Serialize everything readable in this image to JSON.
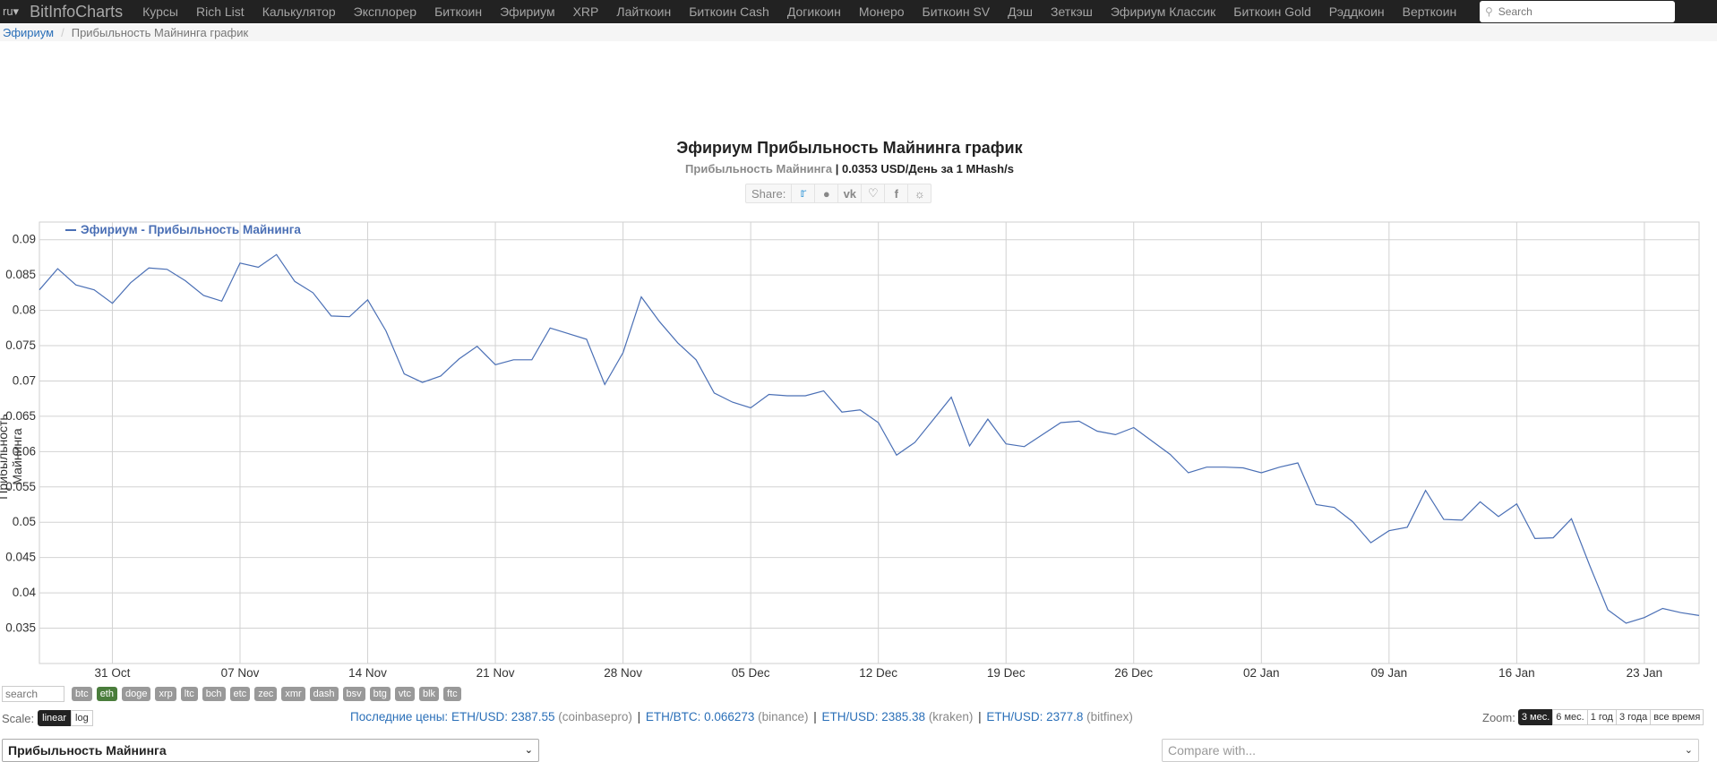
{
  "navbar": {
    "lang": "ru▾",
    "brand": "BitInfoCharts",
    "items": [
      "Курсы",
      "Rich List",
      "Калькулятор",
      "Эксплорер",
      "Биткоин",
      "Эфириум",
      "XRP",
      "Лайткоин",
      "Биткоин Cash",
      "Догикоин",
      "Монеро",
      "Биткоин SV",
      "Дэш",
      "Зеткэш",
      "Эфириум Классик",
      "Биткоин Gold",
      "Рэддкоин",
      "Верткоин"
    ],
    "search_placeholder": "Search"
  },
  "breadcrumb": {
    "parent": "Эфириум",
    "current": "Прибыльность Майнинга график"
  },
  "header": {
    "title": "Эфириум Прибыльность Майнинга график",
    "subtitle_label": "Прибыльность Майнинга",
    "subtitle_value": "| 0.0353 USD/День за 1 MHash/s",
    "share_label": "Share:",
    "share_icons": [
      "twitter-icon",
      "reddit-icon",
      "vk-icon",
      "like-icon",
      "facebook-icon",
      "weibo-icon"
    ]
  },
  "chart_data": {
    "type": "line",
    "title": "",
    "xlabel": "",
    "ylabel": "Прибыльность Майнинга",
    "ylim": [
      0.03,
      0.0925
    ],
    "yticks": [
      0.035,
      0.04,
      0.045,
      0.05,
      0.055,
      0.06,
      0.065,
      0.07,
      0.075,
      0.08,
      0.085,
      0.09
    ],
    "ytick_labels": [
      "0.035",
      "0.04",
      "0.045",
      "0.05",
      "0.055",
      "0.06",
      "0.065",
      "0.07",
      "0.075",
      "0.08",
      "0.085",
      "0.09"
    ],
    "x_start": "2020-10-27",
    "x_end": "2021-01-26",
    "xticks": [
      {
        "date": "2020-10-31",
        "label": "31 Oct"
      },
      {
        "date": "2020-11-07",
        "label": "07 Nov"
      },
      {
        "date": "2020-11-14",
        "label": "14 Nov"
      },
      {
        "date": "2020-11-21",
        "label": "21 Nov"
      },
      {
        "date": "2020-11-28",
        "label": "28 Nov"
      },
      {
        "date": "2020-12-05",
        "label": "05 Dec"
      },
      {
        "date": "2020-12-12",
        "label": "12 Dec"
      },
      {
        "date": "2020-12-19",
        "label": "19 Dec"
      },
      {
        "date": "2020-12-26",
        "label": "26 Dec"
      },
      {
        "date": "2021-01-02",
        "label": "02 Jan"
      },
      {
        "date": "2021-01-09",
        "label": "09 Jan"
      },
      {
        "date": "2021-01-16",
        "label": "16 Jan"
      },
      {
        "date": "2021-01-23",
        "label": "23 Jan"
      }
    ],
    "grid": true,
    "legend_position": "top-left",
    "series": [
      {
        "name": "Эфириум - Прибыльность Майнинга",
        "color": "#4a6fb5",
        "dates": [
          "2020-10-27",
          "2020-10-28",
          "2020-10-29",
          "2020-10-30",
          "2020-10-31",
          "2020-11-01",
          "2020-11-02",
          "2020-11-03",
          "2020-11-04",
          "2020-11-05",
          "2020-11-06",
          "2020-11-07",
          "2020-11-08",
          "2020-11-09",
          "2020-11-10",
          "2020-11-11",
          "2020-11-12",
          "2020-11-13",
          "2020-11-14",
          "2020-11-15",
          "2020-11-16",
          "2020-11-17",
          "2020-11-18",
          "2020-11-19",
          "2020-11-20",
          "2020-11-21",
          "2020-11-22",
          "2020-11-23",
          "2020-11-24",
          "2020-11-25",
          "2020-11-26",
          "2020-11-27",
          "2020-11-28",
          "2020-11-29",
          "2020-11-30",
          "2020-12-01",
          "2020-12-02",
          "2020-12-03",
          "2020-12-04",
          "2020-12-05",
          "2020-12-06",
          "2020-12-07",
          "2020-12-08",
          "2020-12-09",
          "2020-12-10",
          "2020-12-11",
          "2020-12-12",
          "2020-12-13",
          "2020-12-14",
          "2020-12-15",
          "2020-12-16",
          "2020-12-17",
          "2020-12-18",
          "2020-12-19",
          "2020-12-20",
          "2020-12-21",
          "2020-12-22",
          "2020-12-23",
          "2020-12-24",
          "2020-12-25",
          "2020-12-26",
          "2020-12-27",
          "2020-12-28",
          "2020-12-29",
          "2020-12-30",
          "2020-12-31",
          "2021-01-01",
          "2021-01-02",
          "2021-01-03",
          "2021-01-04",
          "2021-01-05",
          "2021-01-06",
          "2021-01-07",
          "2021-01-08",
          "2021-01-09",
          "2021-01-10",
          "2021-01-11",
          "2021-01-12",
          "2021-01-13",
          "2021-01-14",
          "2021-01-15",
          "2021-01-16",
          "2021-01-17",
          "2021-01-18",
          "2021-01-19",
          "2021-01-20",
          "2021-01-21",
          "2021-01-22",
          "2021-01-23",
          "2021-01-24",
          "2021-01-25",
          "2021-01-26"
        ],
        "values": [
          0.0829,
          0.0859,
          0.0836,
          0.0829,
          0.081,
          0.0839,
          0.086,
          0.0858,
          0.0842,
          0.0821,
          0.0813,
          0.0867,
          0.0861,
          0.0879,
          0.0841,
          0.0825,
          0.0792,
          0.0791,
          0.0815,
          0.0771,
          0.071,
          0.0698,
          0.0707,
          0.0731,
          0.0749,
          0.0723,
          0.073,
          0.073,
          0.0775,
          0.0767,
          0.0759,
          0.0695,
          0.074,
          0.0819,
          0.0784,
          0.0754,
          0.073,
          0.0683,
          0.067,
          0.0662,
          0.0681,
          0.0679,
          0.0679,
          0.0686,
          0.0656,
          0.0659,
          0.0641,
          0.0595,
          0.0613,
          0.0645,
          0.0677,
          0.0608,
          0.0646,
          0.0611,
          0.0607,
          0.0624,
          0.0641,
          0.0643,
          0.0629,
          0.0624,
          0.0634,
          0.0615,
          0.0596,
          0.057,
          0.0578,
          0.0578,
          0.0577,
          0.057,
          0.0578,
          0.0584,
          0.0525,
          0.0521,
          0.0501,
          0.0471,
          0.0488,
          0.0493,
          0.0545,
          0.0504,
          0.0503,
          0.0529,
          0.0508,
          0.0526,
          0.0477,
          0.0478,
          0.0505,
          0.0439,
          0.0376,
          0.0357,
          0.0365,
          0.0378,
          0.0372,
          0.0368
        ]
      }
    ]
  },
  "controls": {
    "search_placeholder": "search",
    "coins": [
      {
        "label": "btc",
        "active": false
      },
      {
        "label": "eth",
        "active": true
      },
      {
        "label": "doge",
        "active": false
      },
      {
        "label": "xrp",
        "active": false
      },
      {
        "label": "ltc",
        "active": false
      },
      {
        "label": "bch",
        "active": false
      },
      {
        "label": "etc",
        "active": false
      },
      {
        "label": "zec",
        "active": false
      },
      {
        "label": "xmr",
        "active": false
      },
      {
        "label": "dash",
        "active": false
      },
      {
        "label": "bsv",
        "active": false
      },
      {
        "label": "btg",
        "active": false
      },
      {
        "label": "vtc",
        "active": false
      },
      {
        "label": "blk",
        "active": false
      },
      {
        "label": "ftc",
        "active": false
      }
    ],
    "scale_label": "Scale:",
    "scale_linear": "linear",
    "scale_log": "log",
    "prices_label": "Последние цены:",
    "prices": [
      {
        "pair": "ETH/USD:",
        "value": "2387.55",
        "exchange": "(coinbasepro)"
      },
      {
        "pair": "ETH/BTC:",
        "value": "0.066273",
        "exchange": "(binance)"
      },
      {
        "pair": "ETH/USD:",
        "value": "2385.38",
        "exchange": "(kraken)"
      },
      {
        "pair": "ETH/USD:",
        "value": "2377.8",
        "exchange": "(bitfinex)"
      }
    ],
    "zoom_label": "Zoom:",
    "zoom_options": [
      {
        "label": "3 мес.",
        "active": true
      },
      {
        "label": "6 мес.",
        "active": false
      },
      {
        "label": "1 год",
        "active": false
      },
      {
        "label": "3 года",
        "active": false
      },
      {
        "label": "все время",
        "active": false
      }
    ],
    "metric_select": "Прибыльность Майнинга",
    "compare_placeholder": "Compare with..."
  }
}
